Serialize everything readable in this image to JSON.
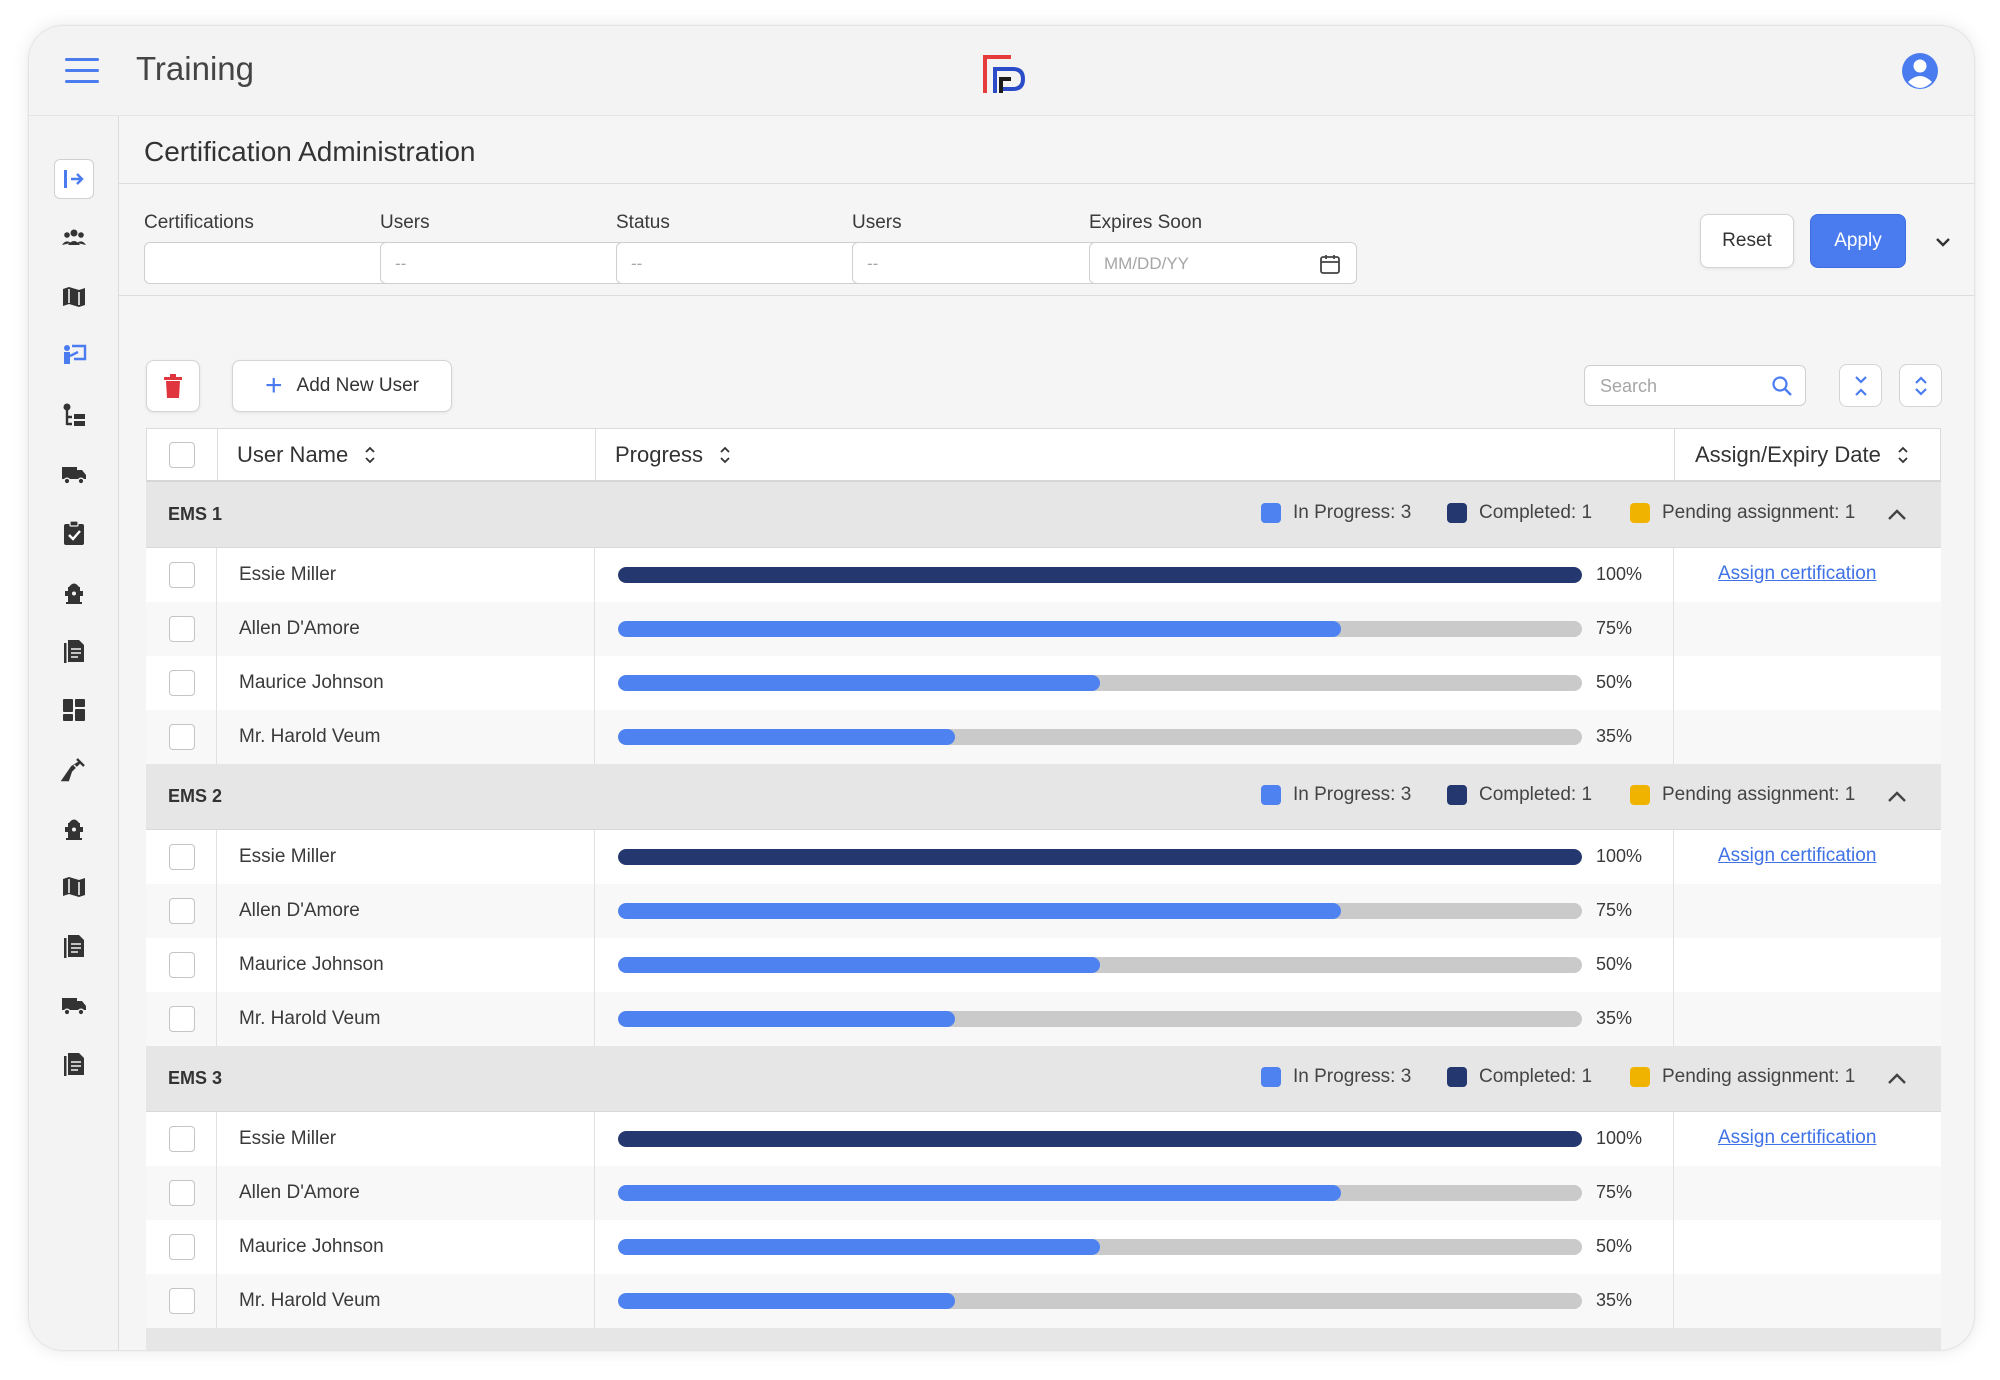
{
  "app": {
    "title": "Training"
  },
  "page": {
    "title": "Certification Administration"
  },
  "filters": {
    "certifications": {
      "label": "Certifications",
      "value": ""
    },
    "users": {
      "label": "Users",
      "placeholder": "--"
    },
    "status": {
      "label": "Status",
      "placeholder": "--"
    },
    "users2": {
      "label": "Users",
      "placeholder": "--"
    },
    "expires": {
      "label": "Expires Soon",
      "placeholder": "MM/DD/YY"
    },
    "reset_label": "Reset",
    "apply_label": "Apply"
  },
  "toolbar": {
    "add_user_label": "Add  New User",
    "search_placeholder": "Search"
  },
  "table": {
    "columns": {
      "username": "User Name",
      "progress": "Progress",
      "assign": "Assign/Expiry Date"
    }
  },
  "colors": {
    "accent": "#4a7cf0",
    "in_progress": "#4f82f1",
    "completed": "#24386f",
    "pending": "#f0b400",
    "delete": "#e0353f"
  },
  "groups": [
    {
      "name": "EMS 1",
      "legend": {
        "in_progress": "In Progress: 3",
        "completed": "Completed: 1",
        "pending": "Pending assignment: 1"
      },
      "rows": [
        {
          "name": "Essie Miller",
          "progress": 100,
          "pct": "100%",
          "action": "Assign certification"
        },
        {
          "name": "Allen D'Amore",
          "progress": 75,
          "pct": "75%",
          "action": ""
        },
        {
          "name": "Maurice Johnson",
          "progress": 50,
          "pct": "50%",
          "action": ""
        },
        {
          "name": "Mr. Harold Veum",
          "progress": 35,
          "pct": "35%",
          "action": ""
        }
      ]
    },
    {
      "name": "EMS 2",
      "legend": {
        "in_progress": "In Progress: 3",
        "completed": "Completed: 1",
        "pending": "Pending assignment: 1"
      },
      "rows": [
        {
          "name": "Essie Miller",
          "progress": 100,
          "pct": "100%",
          "action": "Assign certification"
        },
        {
          "name": "Allen D'Amore",
          "progress": 75,
          "pct": "75%",
          "action": ""
        },
        {
          "name": "Maurice Johnson",
          "progress": 50,
          "pct": "50%",
          "action": ""
        },
        {
          "name": "Mr. Harold Veum",
          "progress": 35,
          "pct": "35%",
          "action": ""
        }
      ]
    },
    {
      "name": "EMS 3",
      "legend": {
        "in_progress": "In Progress: 3",
        "completed": "Completed: 1",
        "pending": "Pending assignment: 1"
      },
      "rows": [
        {
          "name": "Essie Miller",
          "progress": 100,
          "pct": "100%",
          "action": "Assign certification"
        },
        {
          "name": "Allen D'Amore",
          "progress": 75,
          "pct": "75%",
          "action": ""
        },
        {
          "name": "Maurice Johnson",
          "progress": 50,
          "pct": "50%",
          "action": ""
        },
        {
          "name": "Mr. Harold Veum",
          "progress": 35,
          "pct": "35%",
          "action": ""
        }
      ]
    }
  ],
  "sidebar": {
    "items": [
      {
        "icon": "collapse-sidebar-icon"
      },
      {
        "icon": "group-icon"
      },
      {
        "icon": "map-icon"
      },
      {
        "icon": "training-icon"
      },
      {
        "icon": "hierarchy-icon"
      },
      {
        "icon": "truck-icon"
      },
      {
        "icon": "clipboard-check-icon"
      },
      {
        "icon": "hydrant-icon"
      },
      {
        "icon": "document-icon"
      },
      {
        "icon": "dashboard-icon"
      },
      {
        "icon": "syringe-icon"
      },
      {
        "icon": "hydrant-icon"
      },
      {
        "icon": "map-icon"
      },
      {
        "icon": "document-icon"
      },
      {
        "icon": "truck-icon"
      },
      {
        "icon": "document-icon"
      }
    ]
  }
}
